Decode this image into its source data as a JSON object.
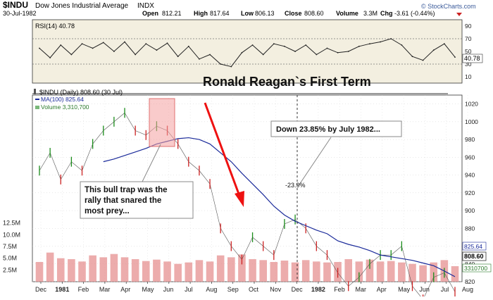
{
  "header": {
    "symbol": "$INDU",
    "name": "Dow Jones Industrial Average",
    "exchange": "INDX",
    "date": "30-Jul-1982",
    "open_label": "Open",
    "open": "812.21",
    "high_label": "High",
    "high": "817.64",
    "low_label": "Low",
    "low": "806.13",
    "close_label": "Close",
    "close": "808.60",
    "volume_label": "Volume",
    "volume": "3.3M",
    "chg_label": "Chg",
    "chg": "-3.61 (-0.44%)",
    "brand": "© StockCharts.com"
  },
  "colors": {
    "up": "#1a8c1a",
    "down": "#cc2222",
    "ma": "#1a2a9a",
    "rsi_line": "#222222",
    "rsi_panel": "#f3efe0",
    "grid": "#d0d0d0",
    "arrow": "#ee1111",
    "trap_box": "#f4a0a0",
    "volume_bar": "#e69090"
  },
  "chart_data": [
    {
      "type": "line",
      "name": "RSI(14)",
      "legend": "RSI(14) 40.78",
      "last_value": "40.78",
      "ylim": [
        0,
        100
      ],
      "y_ticks": [
        "90",
        "70",
        "50",
        "30",
        "10"
      ],
      "reference_lines": [
        70,
        30
      ],
      "x": [
        "1980-12-15",
        "1981-01-01",
        "1981-01-15",
        "1981-02-01",
        "1981-02-15",
        "1981-03-01",
        "1981-03-15",
        "1981-04-01",
        "1981-04-15",
        "1981-05-01",
        "1981-05-15",
        "1981-06-01",
        "1981-06-15",
        "1981-07-01",
        "1981-07-15",
        "1981-08-01",
        "1981-08-15",
        "1981-09-01",
        "1981-09-15",
        "1981-10-01",
        "1981-10-15",
        "1981-11-01",
        "1981-11-15",
        "1981-12-01",
        "1981-12-15",
        "1982-01-01",
        "1982-01-15",
        "1982-02-01",
        "1982-02-15",
        "1982-03-01",
        "1982-03-15",
        "1982-04-01",
        "1982-04-15",
        "1982-05-01",
        "1982-05-15",
        "1982-06-01",
        "1982-06-15",
        "1982-07-01",
        "1982-07-15",
        "1982-07-30"
      ],
      "values": [
        55,
        40,
        60,
        45,
        62,
        55,
        64,
        50,
        65,
        45,
        62,
        52,
        63,
        42,
        58,
        38,
        45,
        30,
        26,
        48,
        60,
        45,
        62,
        58,
        50,
        60,
        45,
        55,
        48,
        50,
        58,
        62,
        65,
        70,
        60,
        42,
        36,
        52,
        62,
        41
      ]
    },
    {
      "type": "line",
      "title": "Ronald Reagan`s First Term",
      "legend": "$INDU (Daily) 808.60 (30 Jul)",
      "ylim": [
        820,
        1030
      ],
      "y_ticks": [
        "1020",
        "1000",
        "980",
        "960",
        "940",
        "920",
        "900",
        "880",
        "860",
        "840",
        "820"
      ],
      "x_ticks": [
        "Dec",
        "1981",
        "Feb",
        "Mar",
        "Apr",
        "May",
        "Jun",
        "Jul",
        "Aug",
        "Sep",
        "Oct",
        "Nov",
        "Dec",
        "1982",
        "Feb",
        "Mar",
        "Apr",
        "May",
        "Jun",
        "Jul",
        "Aug"
      ],
      "last_price_label": "808.60",
      "x": [
        "1980-12-15",
        "1981-01-01",
        "1981-01-15",
        "1981-02-01",
        "1981-02-15",
        "1981-03-01",
        "1981-03-15",
        "1981-04-01",
        "1981-04-15",
        "1981-05-01",
        "1981-05-15",
        "1981-06-01",
        "1981-06-15",
        "1981-07-01",
        "1981-07-15",
        "1981-08-01",
        "1981-08-15",
        "1981-09-01",
        "1981-09-15",
        "1981-10-01",
        "1981-10-15",
        "1981-11-01",
        "1981-11-15",
        "1981-12-01",
        "1981-12-15",
        "1982-01-01",
        "1982-01-15",
        "1982-02-01",
        "1982-02-15",
        "1982-03-01",
        "1982-03-15",
        "1982-04-01",
        "1982-04-15",
        "1982-05-01",
        "1982-05-15",
        "1982-06-01",
        "1982-06-15",
        "1982-07-01",
        "1982-07-15",
        "1982-07-30"
      ],
      "series": [
        {
          "name": "$INDU",
          "values": [
            945,
            965,
            935,
            955,
            945,
            975,
            990,
            1000,
            1010,
            990,
            985,
            995,
            990,
            975,
            955,
            945,
            930,
            880,
            860,
            845,
            870,
            860,
            850,
            885,
            890,
            880,
            860,
            850,
            830,
            815,
            825,
            840,
            850,
            850,
            860,
            815,
            800,
            825,
            830,
            808.6
          ]
        },
        {
          "name": "MA(100)",
          "legend": "MA(100) 825.64",
          "last_value": "825.64",
          "values": [
            null,
            null,
            null,
            null,
            null,
            null,
            955,
            958,
            962,
            966,
            970,
            975,
            978,
            981,
            982,
            980,
            975,
            965,
            955,
            942,
            930,
            918,
            905,
            895,
            888,
            883,
            878,
            874,
            866,
            862,
            859,
            855,
            850,
            848,
            846,
            844,
            841,
            838,
            832,
            825.64
          ]
        }
      ],
      "annotations": [
        {
          "text": "Down 23.85% by July 1982..."
        },
        {
          "text": "-23.9%"
        },
        {
          "text": "This bull trap was the rally that snared the most prey..."
        }
      ]
    },
    {
      "type": "bar",
      "name": "Volume",
      "legend": "Volume 3,310,700",
      "last_value": "3310700",
      "y_ticks": [
        "12.5M",
        "10.0M",
        "7.5M",
        "5.0M",
        "2.5M"
      ],
      "ylim": [
        0,
        13500000
      ],
      "x": [
        "1980-12-15",
        "1981-01-01",
        "1981-01-15",
        "1981-02-01",
        "1981-02-15",
        "1981-03-01",
        "1981-03-15",
        "1981-04-01",
        "1981-04-15",
        "1981-05-01",
        "1981-05-15",
        "1981-06-01",
        "1981-06-15",
        "1981-07-01",
        "1981-07-15",
        "1981-08-01",
        "1981-08-15",
        "1981-09-01",
        "1981-09-15",
        "1981-10-01",
        "1981-10-15",
        "1981-11-01",
        "1981-11-15",
        "1981-12-01",
        "1981-12-15",
        "1982-01-01",
        "1982-01-15",
        "1982-02-01",
        "1982-02-15",
        "1982-03-01",
        "1982-03-15",
        "1982-04-01",
        "1982-04-15",
        "1982-05-01",
        "1982-05-15",
        "1982-06-01",
        "1982-06-15",
        "1982-07-01",
        "1982-07-15",
        "1982-07-30"
      ],
      "values": [
        4200000,
        6200000,
        5000000,
        4800000,
        4300000,
        5600000,
        5200000,
        5900000,
        5200000,
        4800000,
        4400000,
        4700000,
        4300000,
        3800000,
        4100000,
        4600000,
        4300000,
        5600000,
        5200000,
        5800000,
        4800000,
        4600000,
        4200000,
        4500000,
        4100000,
        4600000,
        4300000,
        4100000,
        4200000,
        4800000,
        4300000,
        4700000,
        4300000,
        4400000,
        4100000,
        3800000,
        3500000,
        4100000,
        4600000,
        3310700
      ]
    }
  ]
}
